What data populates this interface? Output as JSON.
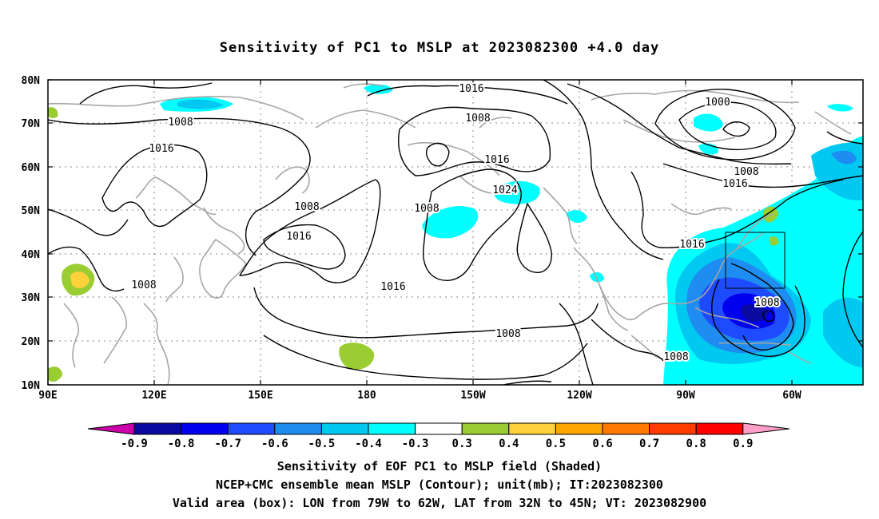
{
  "title": "Sensitivity of PC1 to MSLP at 2023082300 +4.0 day",
  "lat_labels": [
    "80N",
    "70N",
    "60N",
    "50N",
    "40N",
    "30N",
    "20N",
    "10N"
  ],
  "lon_labels": [
    "90E",
    "120E",
    "150E",
    "180",
    "150W",
    "120W",
    "90W",
    "60W"
  ],
  "colorbar": {
    "colors": [
      "#cc00aa",
      "#0a0aa0",
      "#0000ee",
      "#1e4bff",
      "#1e8cf0",
      "#00c8f0",
      "#00ffff",
      "#ffffff",
      "#9acd32",
      "#ffd23c",
      "#ffa500",
      "#ff7800",
      "#ff3c00",
      "#ff0000",
      "#ff9ec8"
    ],
    "ticks": [
      "-0.9",
      "-0.8",
      "-0.7",
      "-0.6",
      "-0.5",
      "-0.4",
      "-0.3",
      "0.3",
      "0.4",
      "0.5",
      "0.6",
      "0.7",
      "0.8",
      "0.9"
    ]
  },
  "contour_labels": [
    "1016",
    "1008",
    "1000",
    "1008",
    "1016",
    "1016",
    "1024",
    "1008",
    "1008",
    "1016",
    "1008",
    "1016",
    "1016",
    "1008",
    "1016",
    "1008",
    "1008",
    "1008"
  ],
  "valid_area": {
    "lon_west": "79W",
    "lon_east": "62W",
    "lat_south": "32N",
    "lat_north": "45N"
  },
  "captions": [
    "Sensitivity of EOF PC1 to MSLP field (Shaded)",
    "NCEP+CMC ensemble mean MSLP (Contour); unit(mb); IT:2023082300",
    "Valid area (box): LON from 79W to 62W, LAT from 32N to 45N; VT: 2023082900"
  ]
}
